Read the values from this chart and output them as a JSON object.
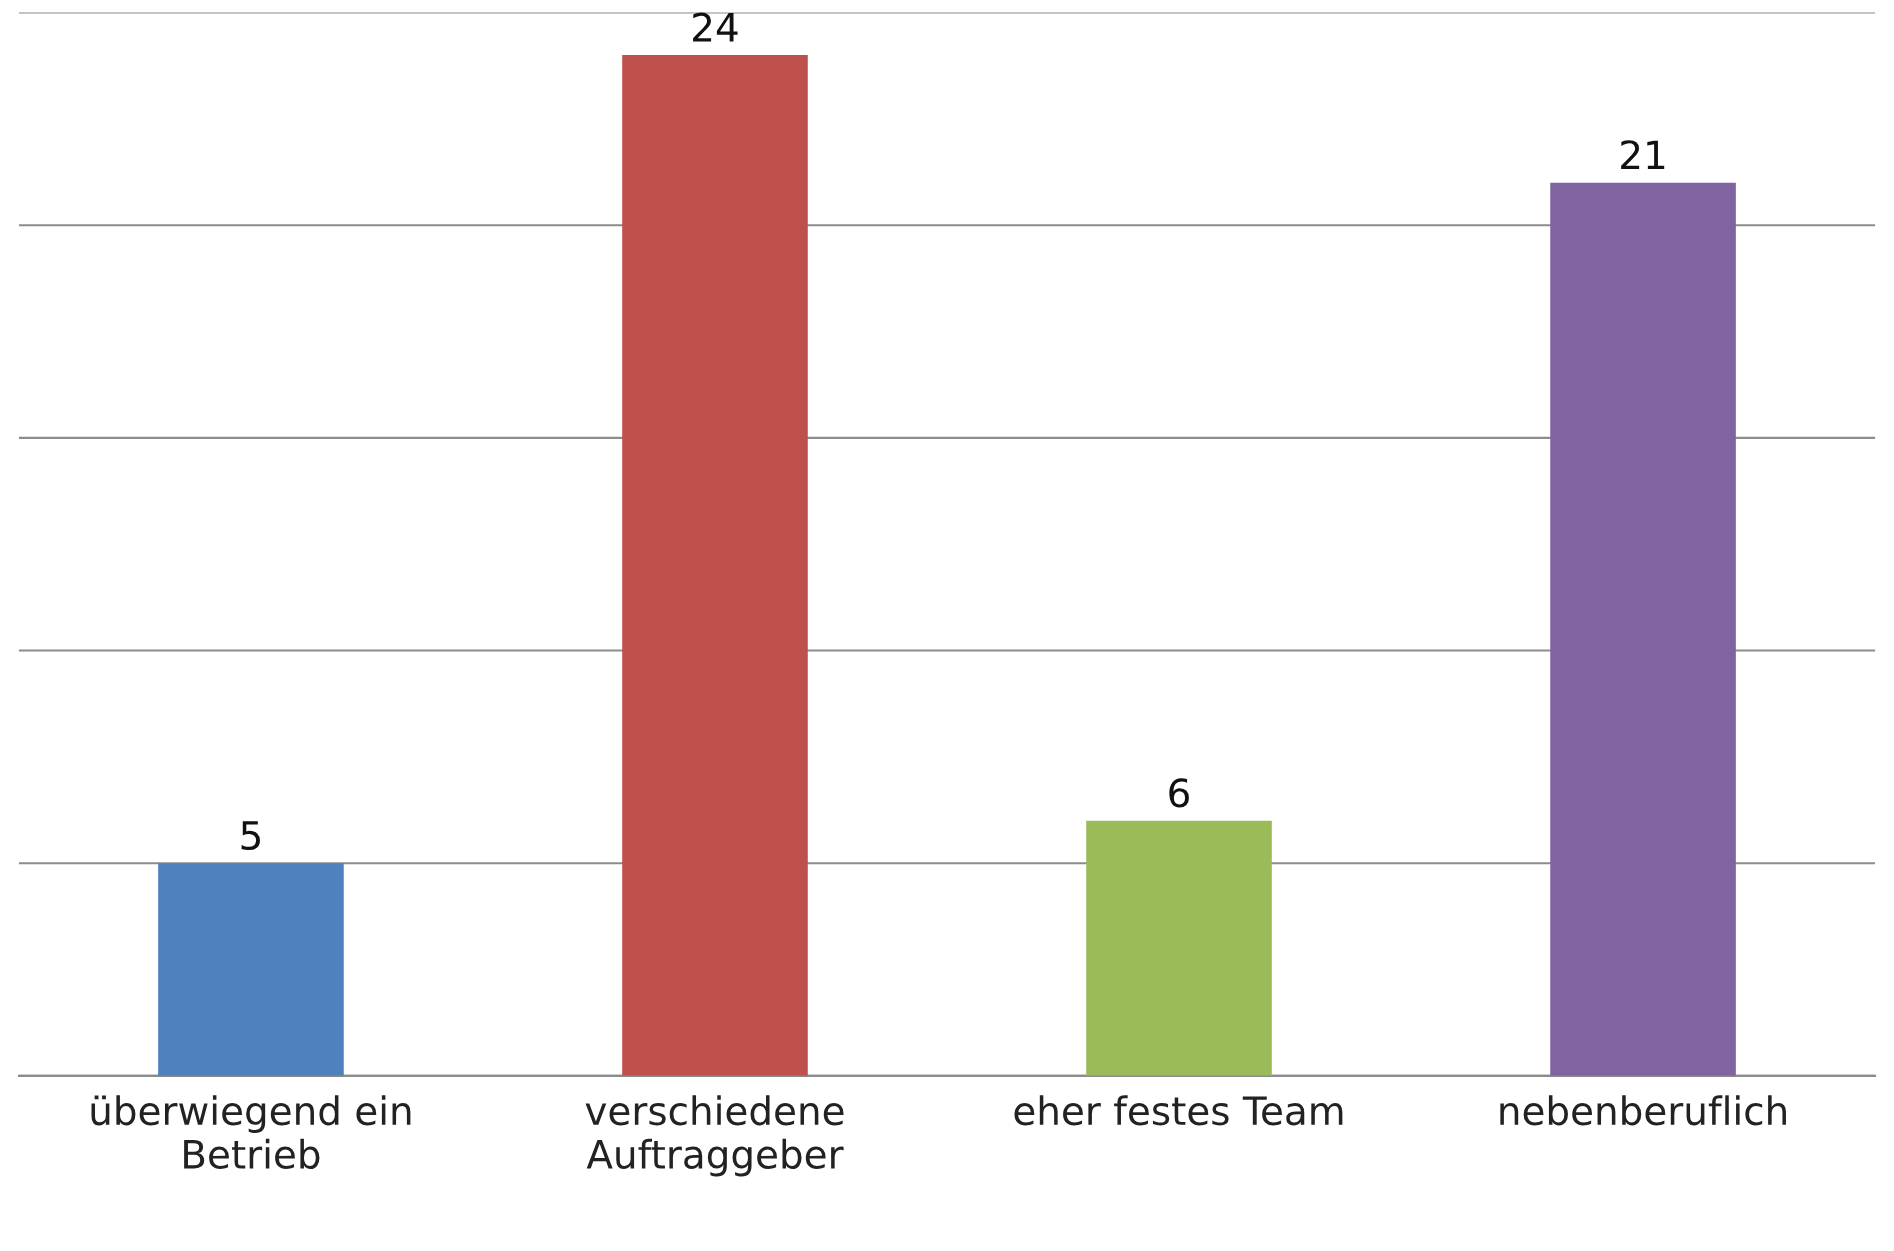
{
  "chart_data": {
    "type": "bar",
    "categories": [
      "überwiegend ein\nBetrieb",
      "verschiedene\nAuftraggeber",
      "eher festes Team",
      "nebenberuflich"
    ],
    "values": [
      5,
      24,
      6,
      21
    ],
    "colors": [
      "#4f81bd",
      "#c0504d",
      "#9bbb59",
      "#8064a2"
    ],
    "ylim": [
      0,
      25
    ],
    "yticks": [
      {
        "value": 0,
        "label": null
      },
      {
        "value": 5,
        "label": null
      },
      {
        "value": 10,
        "label": null
      },
      {
        "value": 15,
        "label": null
      },
      {
        "value": 20,
        "label": null
      },
      {
        "value": 25,
        "label": null
      }
    ],
    "tick_labels": "x",
    "grid": "y",
    "data_labels": true,
    "legend": false
  }
}
